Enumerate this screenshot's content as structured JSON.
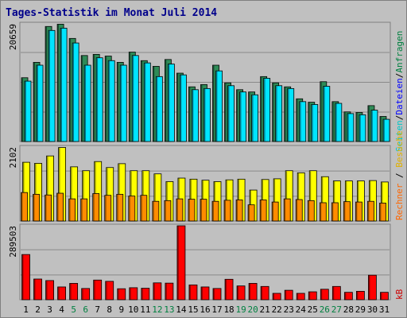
{
  "title": "Tages-Statistik im Monat Juli 2014",
  "colors": {
    "anfragen": "#2e8b57",
    "dateien": "#00e5ff",
    "seiten": "#ffff00",
    "rechner": "#ff8c00",
    "kb": "#ff0000",
    "legend_anfragen": "#008040",
    "legend_dateien": "#0000ff",
    "legend_seiten": "#00c8c8",
    "legend_besuche": "#e0b000",
    "legend_rechner": "#ff6600",
    "legend_kb": "#cc0000",
    "weekend_day": "#008040",
    "weekday": "#000000"
  },
  "legend": {
    "anfragen": "Anfragen",
    "dateien": "Dateien",
    "seiten": "Seiten",
    "besuche": "Besuche",
    "rechner": "Rechner",
    "kb": "kB",
    "sep": "/"
  },
  "chart_data": [
    {
      "type": "bar",
      "ymax_label": "20659",
      "ylim": [
        0,
        20659
      ],
      "categories": [
        "1",
        "2",
        "3",
        "4",
        "5",
        "6",
        "7",
        "8",
        "9",
        "10",
        "11",
        "12",
        "13",
        "14",
        "15",
        "16",
        "17",
        "18",
        "19",
        "20",
        "21",
        "22",
        "23",
        "24",
        "25",
        "26",
        "27",
        "28",
        "29",
        "30",
        "31"
      ],
      "series": [
        {
          "name": "Anfragen",
          "values": [
            11200,
            13900,
            20200,
            20600,
            18100,
            15100,
            15300,
            15000,
            13900,
            15700,
            14200,
            13200,
            14400,
            12000,
            9600,
            10000,
            13400,
            10300,
            9100,
            8700,
            11400,
            10300,
            9600,
            7500,
            6900,
            10500,
            7000,
            5200,
            5100,
            6300,
            4400
          ]
        },
        {
          "name": "Dateien",
          "values": [
            10600,
            13400,
            19500,
            19900,
            17300,
            13400,
            14700,
            14200,
            13400,
            15100,
            13800,
            11400,
            13600,
            11700,
            9100,
            9300,
            12400,
            9800,
            8700,
            8200,
            11100,
            9800,
            9300,
            7000,
            6500,
            9700,
            6700,
            4900,
            4700,
            5500,
            3900
          ]
        }
      ]
    },
    {
      "type": "bar",
      "ymax_label": "2102",
      "ylim": [
        0,
        2102
      ],
      "categories": [
        "1",
        "2",
        "3",
        "4",
        "5",
        "6",
        "7",
        "8",
        "9",
        "10",
        "11",
        "12",
        "13",
        "14",
        "15",
        "16",
        "17",
        "18",
        "19",
        "20",
        "21",
        "22",
        "23",
        "24",
        "25",
        "26",
        "27",
        "28",
        "29",
        "30",
        "31"
      ],
      "series": [
        {
          "name": "Seiten",
          "values": [
            1670,
            1640,
            1850,
            2090,
            1540,
            1430,
            1690,
            1520,
            1630,
            1430,
            1430,
            1340,
            1120,
            1220,
            1190,
            1160,
            1120,
            1170,
            1190,
            880,
            1180,
            1200,
            1430,
            1370,
            1430,
            1260,
            1140,
            1140,
            1140,
            1150,
            1110
          ]
        },
        {
          "name": "Rechner",
          "values": [
            810,
            760,
            740,
            790,
            630,
            630,
            780,
            730,
            760,
            710,
            730,
            560,
            580,
            630,
            620,
            620,
            560,
            590,
            600,
            460,
            600,
            540,
            630,
            610,
            580,
            520,
            520,
            550,
            540,
            560,
            510
          ]
        }
      ]
    },
    {
      "type": "bar",
      "ymax_label": "289503",
      "ylim": [
        0,
        289503
      ],
      "categories": [
        "1",
        "2",
        "3",
        "4",
        "5",
        "6",
        "7",
        "8",
        "9",
        "10",
        "11",
        "12",
        "13",
        "14",
        "15",
        "16",
        "17",
        "18",
        "19",
        "20",
        "21",
        "22",
        "23",
        "24",
        "25",
        "26",
        "27",
        "28",
        "29",
        "30",
        "31"
      ],
      "series": [
        {
          "name": "kB",
          "values": [
            177000,
            81000,
            75000,
            50000,
            64000,
            44000,
            77000,
            72000,
            43000,
            47000,
            45000,
            66000,
            65000,
            289503,
            58000,
            50000,
            44000,
            80000,
            54000,
            64000,
            52000,
            25000,
            37000,
            25000,
            31000,
            41000,
            52000,
            29000,
            33000,
            96000,
            29000
          ]
        }
      ]
    }
  ],
  "weekend_days": [
    5,
    6,
    12,
    13,
    19,
    20,
    26,
    27
  ]
}
